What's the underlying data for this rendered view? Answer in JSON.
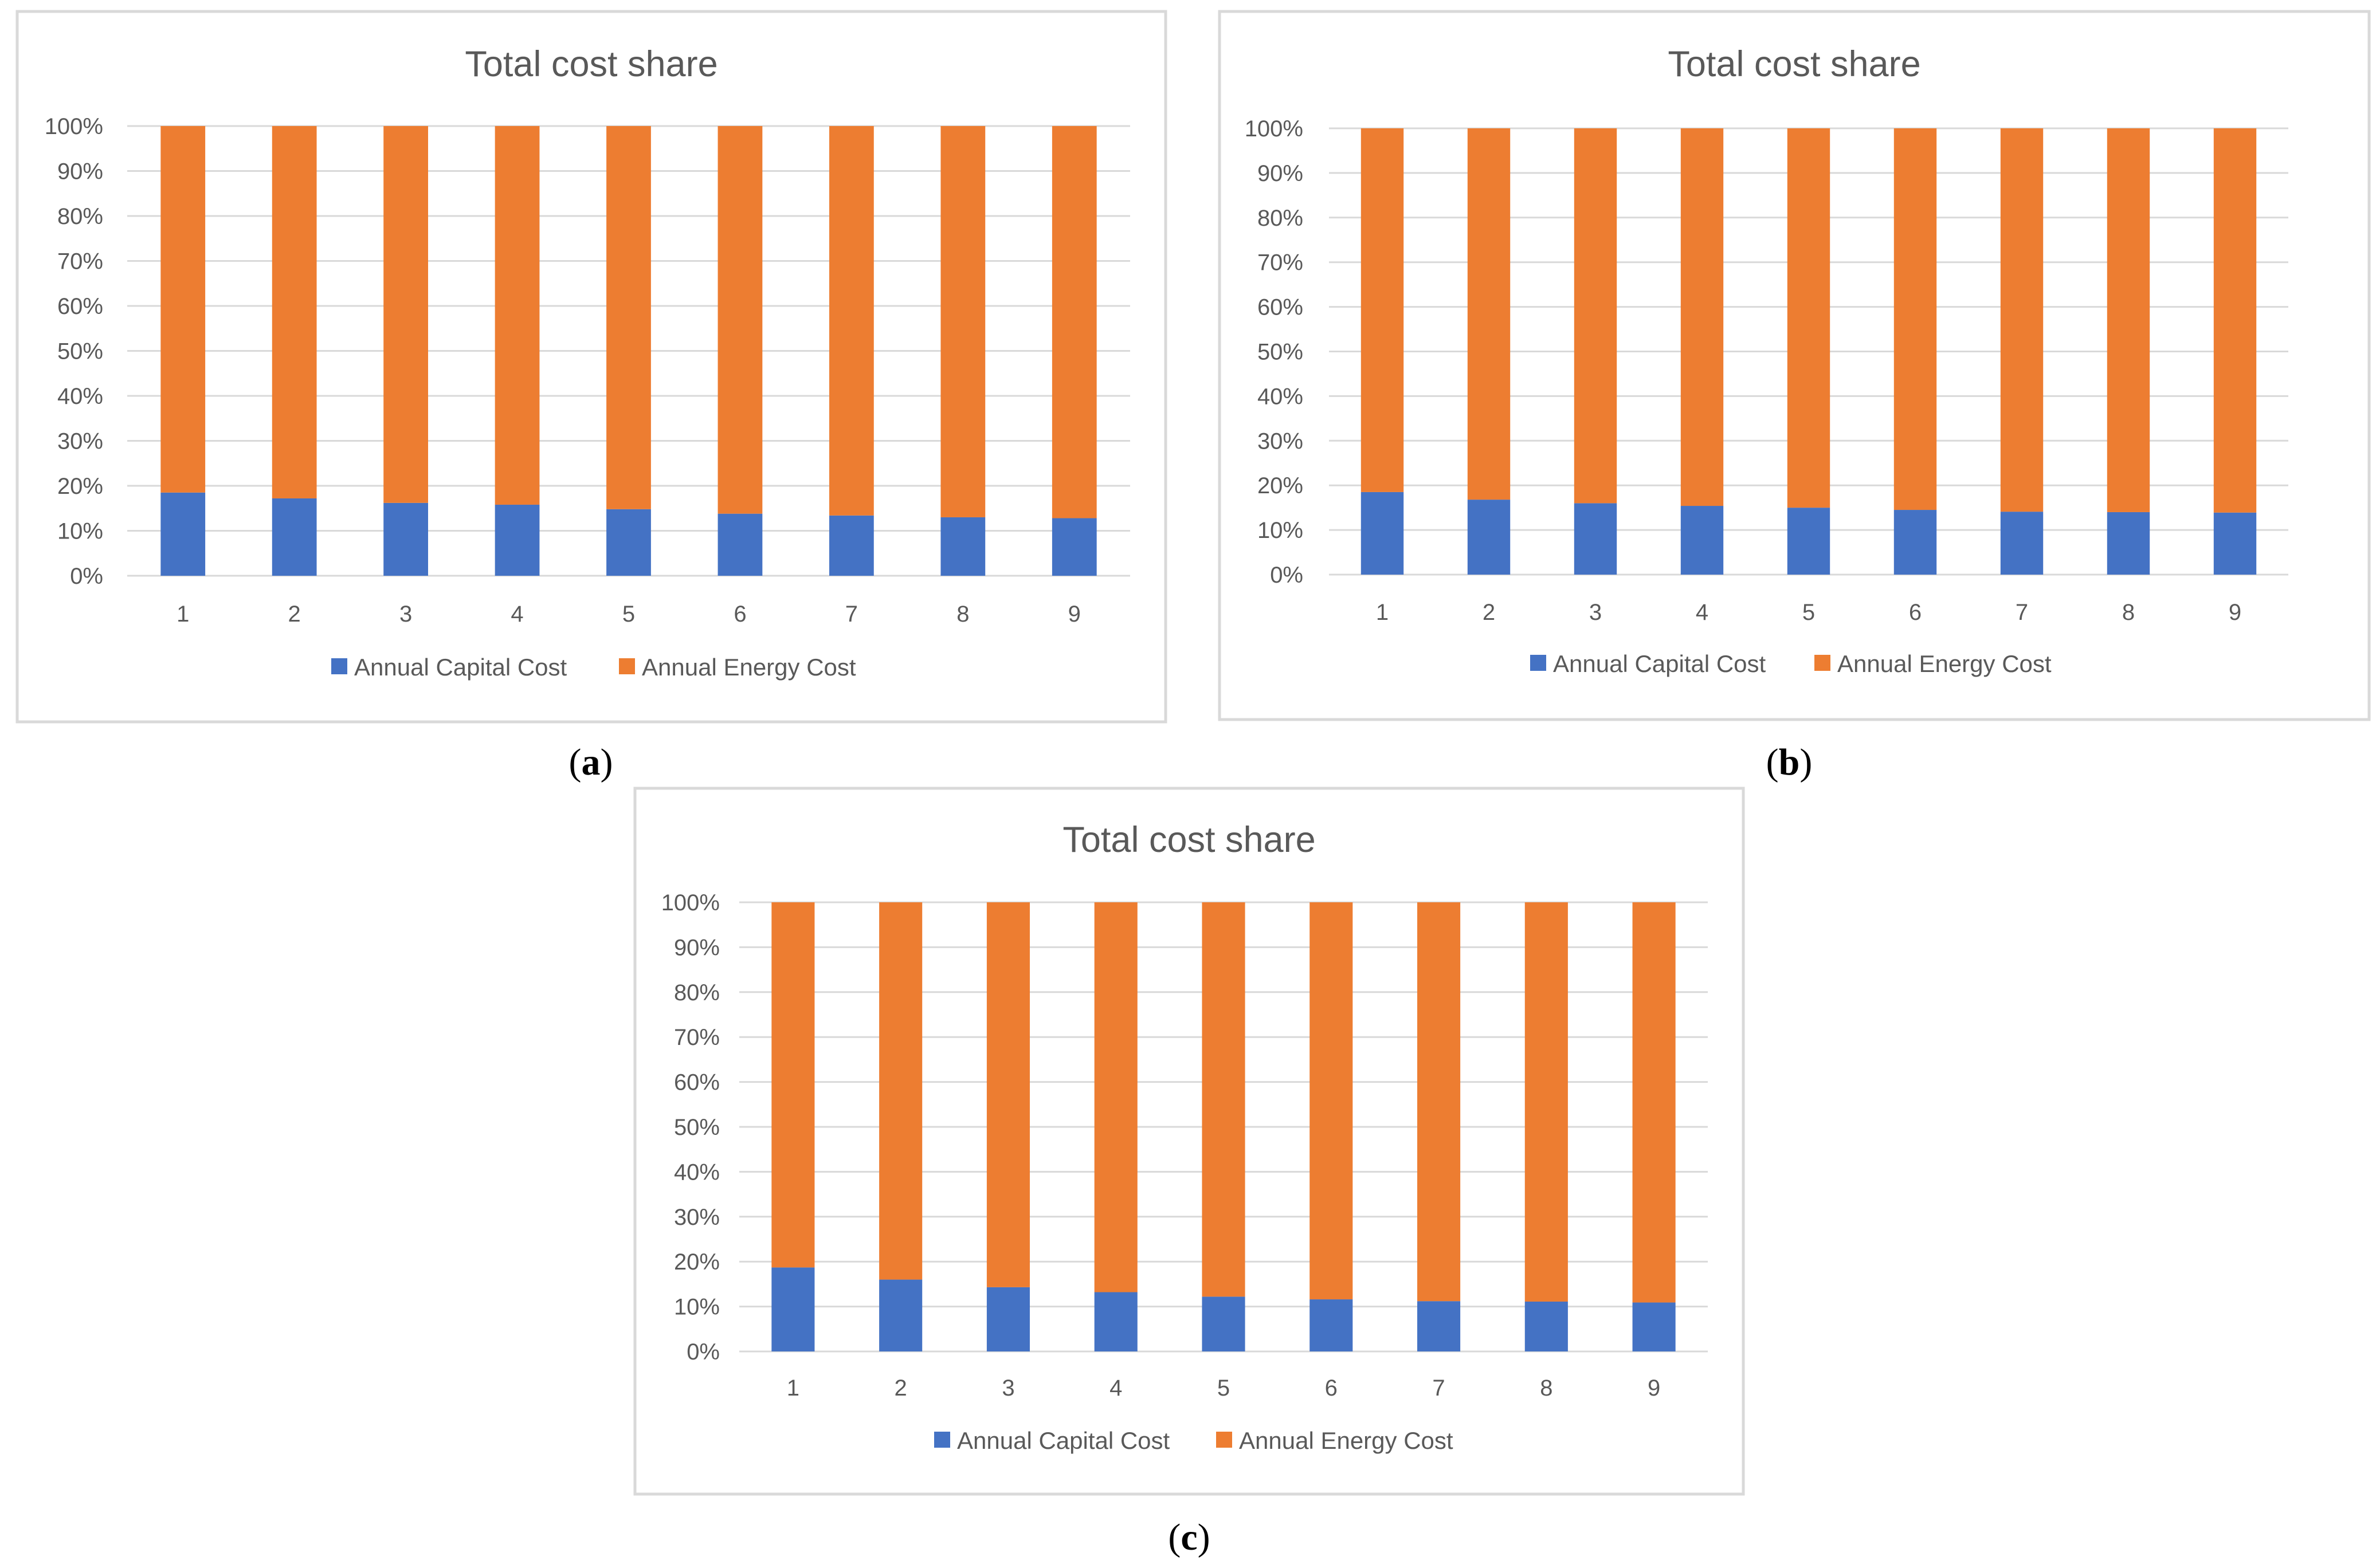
{
  "colors": {
    "capital": "#4472c4",
    "energy": "#ed7d31"
  },
  "chart_data": [
    {
      "panel": "a",
      "caption": "a",
      "type": "bar",
      "stacked": "percent",
      "title": "Total cost share",
      "xlabel": "",
      "ylabel": "",
      "categories": [
        "1",
        "2",
        "3",
        "4",
        "5",
        "6",
        "7",
        "8",
        "9"
      ],
      "yticks": [
        "0%",
        "10%",
        "20%",
        "30%",
        "40%",
        "50%",
        "60%",
        "70%",
        "80%",
        "90%",
        "100%"
      ],
      "ylim": [
        0,
        100
      ],
      "grid": true,
      "legend_position": "bottom",
      "series": [
        {
          "name": "Annual Capital Cost",
          "values": [
            18.5,
            17.2,
            16.2,
            15.8,
            14.8,
            13.8,
            13.4,
            13.0,
            12.8
          ]
        },
        {
          "name": "Annual Energy Cost",
          "values": [
            81.5,
            82.8,
            83.8,
            84.2,
            85.2,
            86.2,
            86.6,
            87.0,
            87.2
          ]
        }
      ]
    },
    {
      "panel": "b",
      "caption": "b",
      "type": "bar",
      "stacked": "percent",
      "title": "Total cost share",
      "xlabel": "",
      "ylabel": "",
      "categories": [
        "1",
        "2",
        "3",
        "4",
        "5",
        "6",
        "7",
        "8",
        "9"
      ],
      "yticks": [
        "0%",
        "10%",
        "20%",
        "30%",
        "40%",
        "50%",
        "60%",
        "70%",
        "80%",
        "90%",
        "100%"
      ],
      "ylim": [
        0,
        100
      ],
      "grid": true,
      "legend_position": "bottom",
      "series": [
        {
          "name": "Annual Capital Cost",
          "values": [
            18.5,
            16.8,
            16.0,
            15.4,
            15.0,
            14.5,
            14.1,
            14.0,
            13.9
          ]
        },
        {
          "name": "Annual Energy Cost",
          "values": [
            81.5,
            83.2,
            84.0,
            84.6,
            85.0,
            85.5,
            85.9,
            86.0,
            86.1
          ]
        }
      ]
    },
    {
      "panel": "c",
      "caption": "c",
      "type": "bar",
      "stacked": "percent",
      "title": "Total cost share",
      "xlabel": "",
      "ylabel": "",
      "categories": [
        "1",
        "2",
        "3",
        "4",
        "5",
        "6",
        "7",
        "8",
        "9"
      ],
      "yticks": [
        "0%",
        "10%",
        "20%",
        "30%",
        "40%",
        "50%",
        "60%",
        "70%",
        "80%",
        "90%",
        "100%"
      ],
      "ylim": [
        0,
        100
      ],
      "grid": true,
      "legend_position": "bottom",
      "series": [
        {
          "name": "Annual Capital Cost",
          "values": [
            18.7,
            16.0,
            14.3,
            13.2,
            12.2,
            11.6,
            11.2,
            11.1,
            10.9
          ]
        },
        {
          "name": "Annual Energy Cost",
          "values": [
            81.3,
            84.0,
            85.7,
            86.8,
            87.8,
            88.4,
            88.8,
            88.9,
            89.1
          ]
        }
      ]
    }
  ]
}
